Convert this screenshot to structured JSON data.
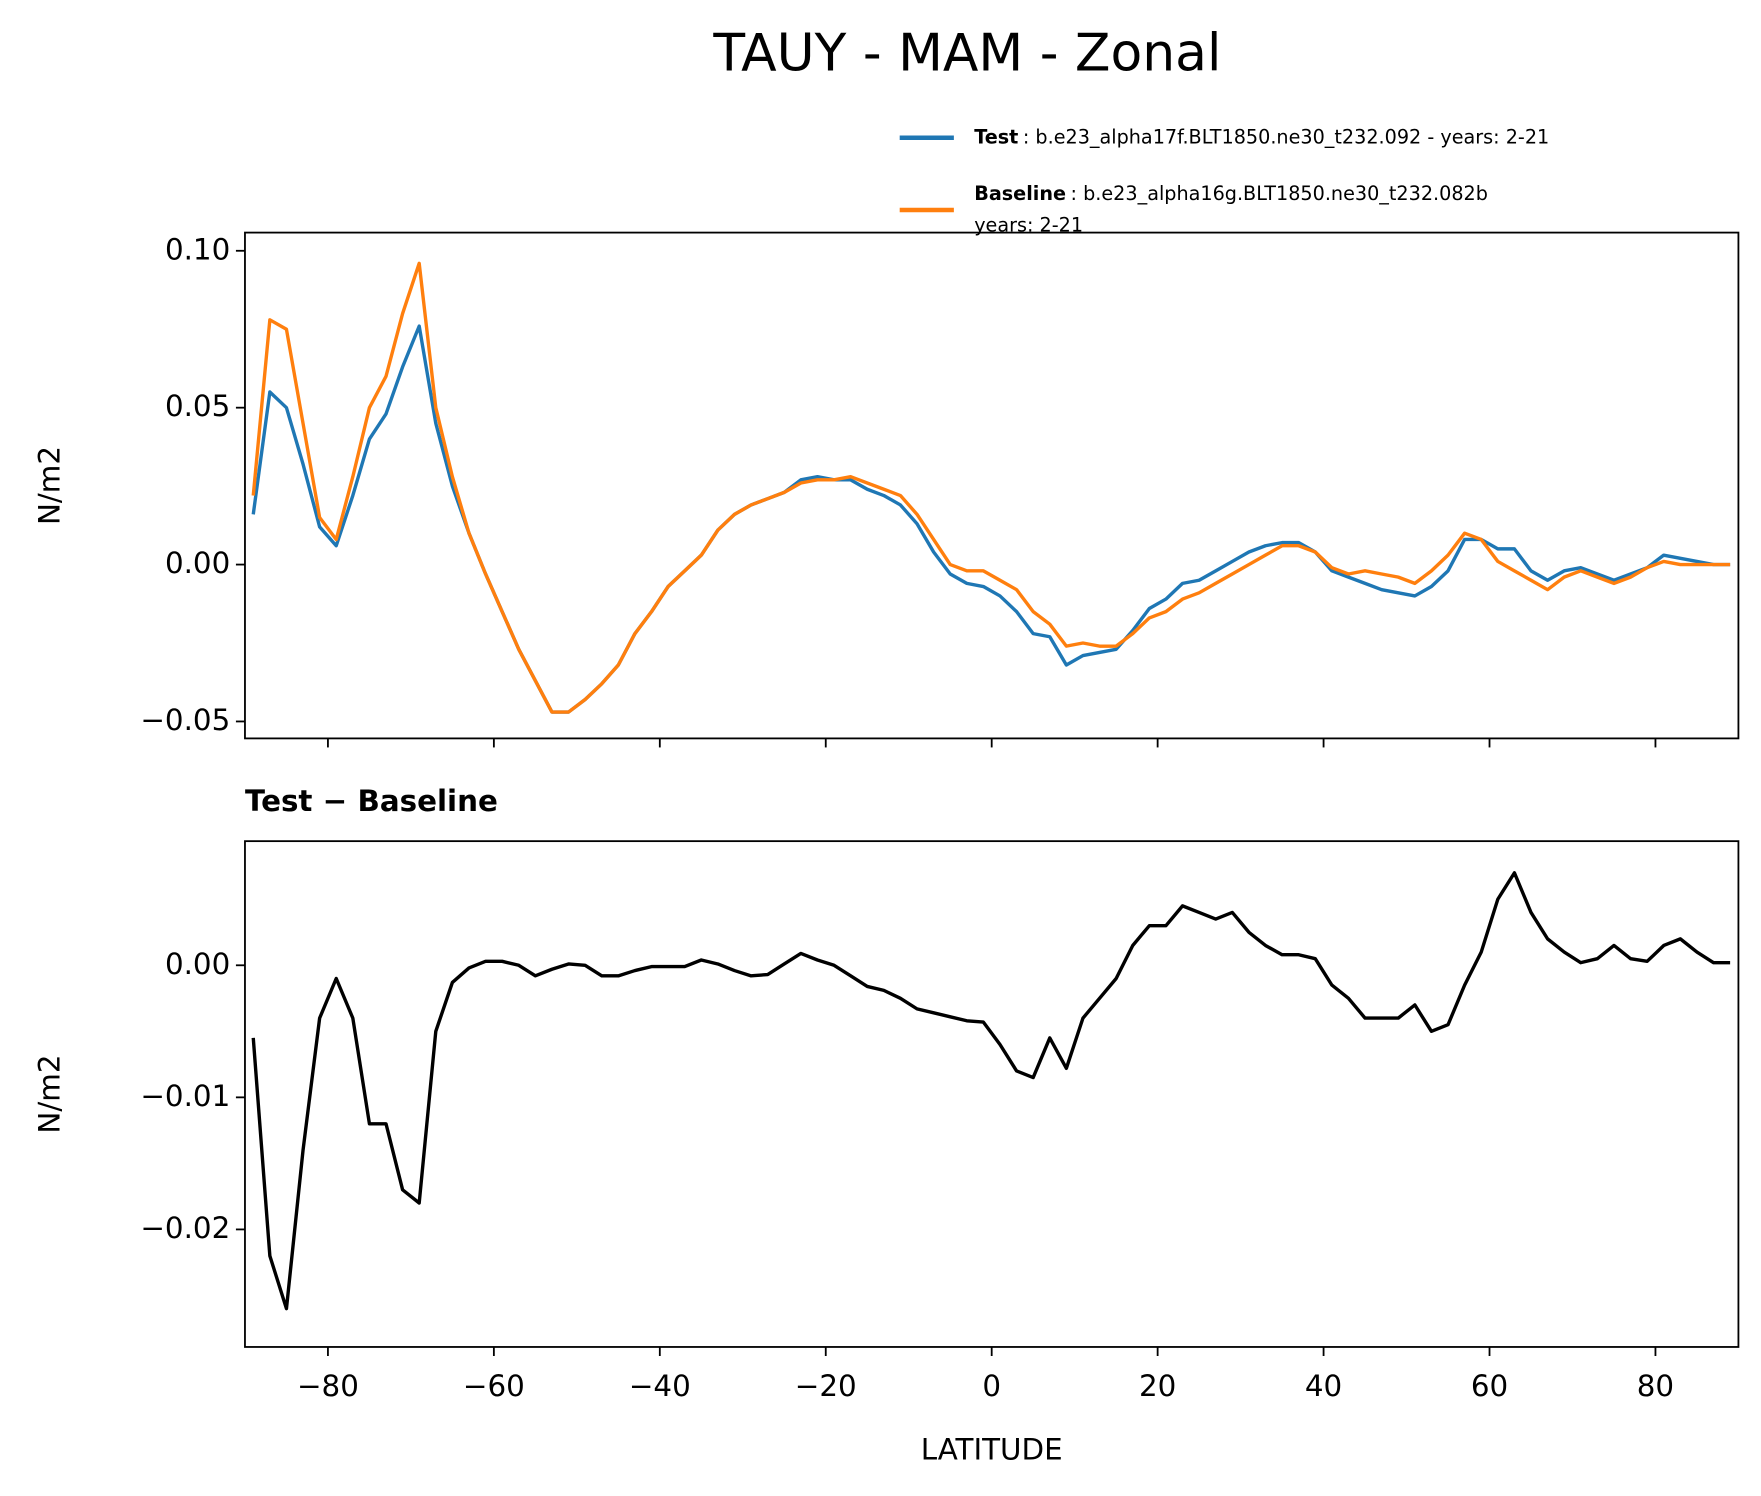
{
  "title": "TAUY - MAM - Zonal",
  "chart_data": [
    {
      "type": "line",
      "ylabel": "N/m2",
      "xlim": [
        -90,
        90
      ],
      "ylim": [
        -0.0554,
        0.1058
      ],
      "xticks": [
        -80,
        -60,
        -40,
        -20,
        0,
        20,
        40,
        60,
        80
      ],
      "yticks": [
        {
          "value": -0.05,
          "label": "−0.05"
        },
        {
          "value": 0,
          "label": "0.00"
        },
        0.05,
        {
          "value": 0.1,
          "label": "0.10"
        }
      ],
      "x": [
        -89,
        -87,
        -85,
        -83,
        -81,
        -79,
        -77,
        -75,
        -73,
        -71,
        -69,
        -67,
        -65,
        -63,
        -61,
        -59,
        -57,
        -55,
        -53,
        -51,
        -49,
        -47,
        -45,
        -43,
        -41,
        -39,
        -37,
        -35,
        -33,
        -31,
        -29,
        -27,
        -25,
        -23,
        -21,
        -19,
        -17,
        -15,
        -13,
        -11,
        -9,
        -7,
        -5,
        -3,
        -1,
        1,
        3,
        5,
        7,
        9,
        11,
        13,
        15,
        17,
        19,
        21,
        23,
        25,
        27,
        29,
        31,
        33,
        35,
        37,
        39,
        41,
        43,
        45,
        47,
        49,
        51,
        53,
        55,
        57,
        59,
        61,
        63,
        65,
        67,
        69,
        71,
        73,
        75,
        77,
        79,
        81,
        83,
        85,
        87,
        89
      ],
      "series": [
        {
          "name": "Test",
          "legend_lines": [
            ": b.e23_alpha17f.BLT1850.ne30_t232.092 - years: 2-21"
          ],
          "color": "#1f77b4",
          "values": [
            0.016,
            0.055,
            0.05,
            0.032,
            0.012,
            0.006,
            0.022,
            0.04,
            0.048,
            0.063,
            0.076,
            0.045,
            0.025,
            0.01,
            -0.003,
            -0.015,
            -0.027,
            -0.037,
            -0.047,
            -0.047,
            -0.043,
            -0.038,
            -0.032,
            -0.022,
            -0.015,
            -0.007,
            -0.002,
            0.003,
            0.011,
            0.016,
            0.019,
            0.021,
            0.023,
            0.027,
            0.028,
            0.027,
            0.027,
            0.024,
            0.022,
            0.019,
            0.013,
            0.004,
            -0.003,
            -0.006,
            -0.007,
            -0.01,
            -0.015,
            -0.022,
            -0.023,
            -0.032,
            -0.029,
            -0.028,
            -0.027,
            -0.021,
            -0.014,
            -0.011,
            -0.006,
            -0.005,
            -0.002,
            0.001,
            0.004,
            0.006,
            0.007,
            0.007,
            0.004,
            -0.002,
            -0.004,
            -0.006,
            -0.008,
            -0.009,
            -0.01,
            -0.007,
            -0.002,
            0.008,
            0.008,
            0.005,
            0.005,
            -0.002,
            -0.005,
            -0.002,
            -0.001,
            -0.003,
            -0.005,
            -0.003,
            -0.001,
            0.003,
            0.002,
            0.001,
            0,
            0
          ]
        },
        {
          "name": "Baseline",
          "legend_lines": [
            ": b.e23_alpha16g.BLT1850.ne30_t232.082b",
            "years: 2-21"
          ],
          "color": "#ff7f0e",
          "values": [
            0.022,
            0.078,
            0.075,
            0.045,
            0.015,
            0.008,
            0.028,
            0.05,
            0.06,
            0.08,
            0.096,
            0.05,
            0.028,
            0.01,
            -0.003,
            -0.015,
            -0.027,
            -0.037,
            -0.047,
            -0.047,
            -0.043,
            -0.038,
            -0.032,
            -0.022,
            -0.015,
            -0.007,
            -0.002,
            0.003,
            0.011,
            0.016,
            0.019,
            0.021,
            0.023,
            0.026,
            0.027,
            0.027,
            0.028,
            0.026,
            0.024,
            0.022,
            0.016,
            0.008,
            0,
            -0.002,
            -0.002,
            -0.005,
            -0.008,
            -0.015,
            -0.019,
            -0.026,
            -0.025,
            -0.026,
            -0.026,
            -0.022,
            -0.017,
            -0.015,
            -0.011,
            -0.009,
            -0.006,
            -0.003,
            0,
            0.003,
            0.006,
            0.006,
            0.004,
            -0.001,
            -0.003,
            -0.002,
            -0.003,
            -0.004,
            -0.006,
            -0.002,
            0.003,
            0.01,
            0.008,
            0.001,
            -0.002,
            -0.005,
            -0.008,
            -0.004,
            -0.002,
            -0.004,
            -0.006,
            -0.004,
            -0.001,
            0.001,
            0,
            0,
            0,
            0
          ]
        }
      ]
    },
    {
      "type": "line",
      "title": "Test − Baseline",
      "xlabel": "LATITUDE",
      "ylabel": "N/m2",
      "xlim": [
        -90,
        90
      ],
      "ylim": [
        -0.0289,
        0.0094
      ],
      "xticks": [
        {
          "value": -80,
          "label": "−80"
        },
        {
          "value": -60,
          "label": "−60"
        },
        {
          "value": -40,
          "label": "−40"
        },
        {
          "value": -20,
          "label": "−20"
        },
        0,
        20,
        40,
        60,
        80
      ],
      "yticks": [
        {
          "value": -0.02,
          "label": "−0.02"
        },
        {
          "value": -0.01,
          "label": "−0.01"
        },
        {
          "value": 0,
          "label": "0.00"
        }
      ],
      "x": [
        -89,
        -87,
        -85,
        -83,
        -81,
        -79,
        -77,
        -75,
        -73,
        -71,
        -69,
        -67,
        -65,
        -63,
        -61,
        -59,
        -57,
        -55,
        -53,
        -51,
        -49,
        -47,
        -45,
        -43,
        -41,
        -39,
        -37,
        -35,
        -33,
        -31,
        -29,
        -27,
        -25,
        -23,
        -21,
        -19,
        -17,
        -15,
        -13,
        -11,
        -9,
        -7,
        -5,
        -3,
        -1,
        1,
        3,
        5,
        7,
        9,
        11,
        13,
        15,
        17,
        19,
        21,
        23,
        25,
        27,
        29,
        31,
        33,
        35,
        37,
        39,
        41,
        43,
        45,
        47,
        49,
        51,
        53,
        55,
        57,
        59,
        61,
        63,
        65,
        67,
        69,
        71,
        73,
        75,
        77,
        79,
        81,
        83,
        85,
        87,
        89
      ],
      "series": [
        {
          "color": "#000000",
          "values": [
            -0.0055,
            -0.022,
            -0.026,
            -0.014,
            -0.004,
            -0.001,
            -0.004,
            -0.012,
            -0.012,
            -0.017,
            -0.018,
            -0.005,
            -0.0013,
            -0.0002,
            0.0003,
            0.0003,
            0,
            -0.0008,
            -0.0003,
            0.0001,
            0,
            -0.0008,
            -0.0008,
            -0.0004,
            -0.0001,
            -0.0001,
            -0.0001,
            0.0004,
            0.0001,
            -0.0004,
            -0.0008,
            -0.0007,
            0.0001,
            0.0009,
            0.0004,
            0,
            -0.0008,
            -0.0016,
            -0.0019,
            -0.0025,
            -0.0033,
            -0.0036,
            -0.0039,
            -0.0042,
            -0.0043,
            -0.006,
            -0.008,
            -0.0085,
            -0.0055,
            -0.0078,
            -0.004,
            -0.0025,
            -0.001,
            0.0015,
            0.003,
            0.003,
            0.0045,
            0.004,
            0.0035,
            0.004,
            0.0025,
            0.0015,
            0.0008,
            0.0008,
            0.0005,
            -0.0015,
            -0.0025,
            -0.004,
            -0.004,
            -0.004,
            -0.003,
            -0.005,
            -0.0045,
            -0.0015,
            0.001,
            0.005,
            0.007,
            0.004,
            0.002,
            0.001,
            0.0002,
            0.0005,
            0.0015,
            0.0005,
            0.0003,
            0.0015,
            0.002,
            0.001,
            0.0002,
            0.0002
          ]
        }
      ]
    }
  ]
}
